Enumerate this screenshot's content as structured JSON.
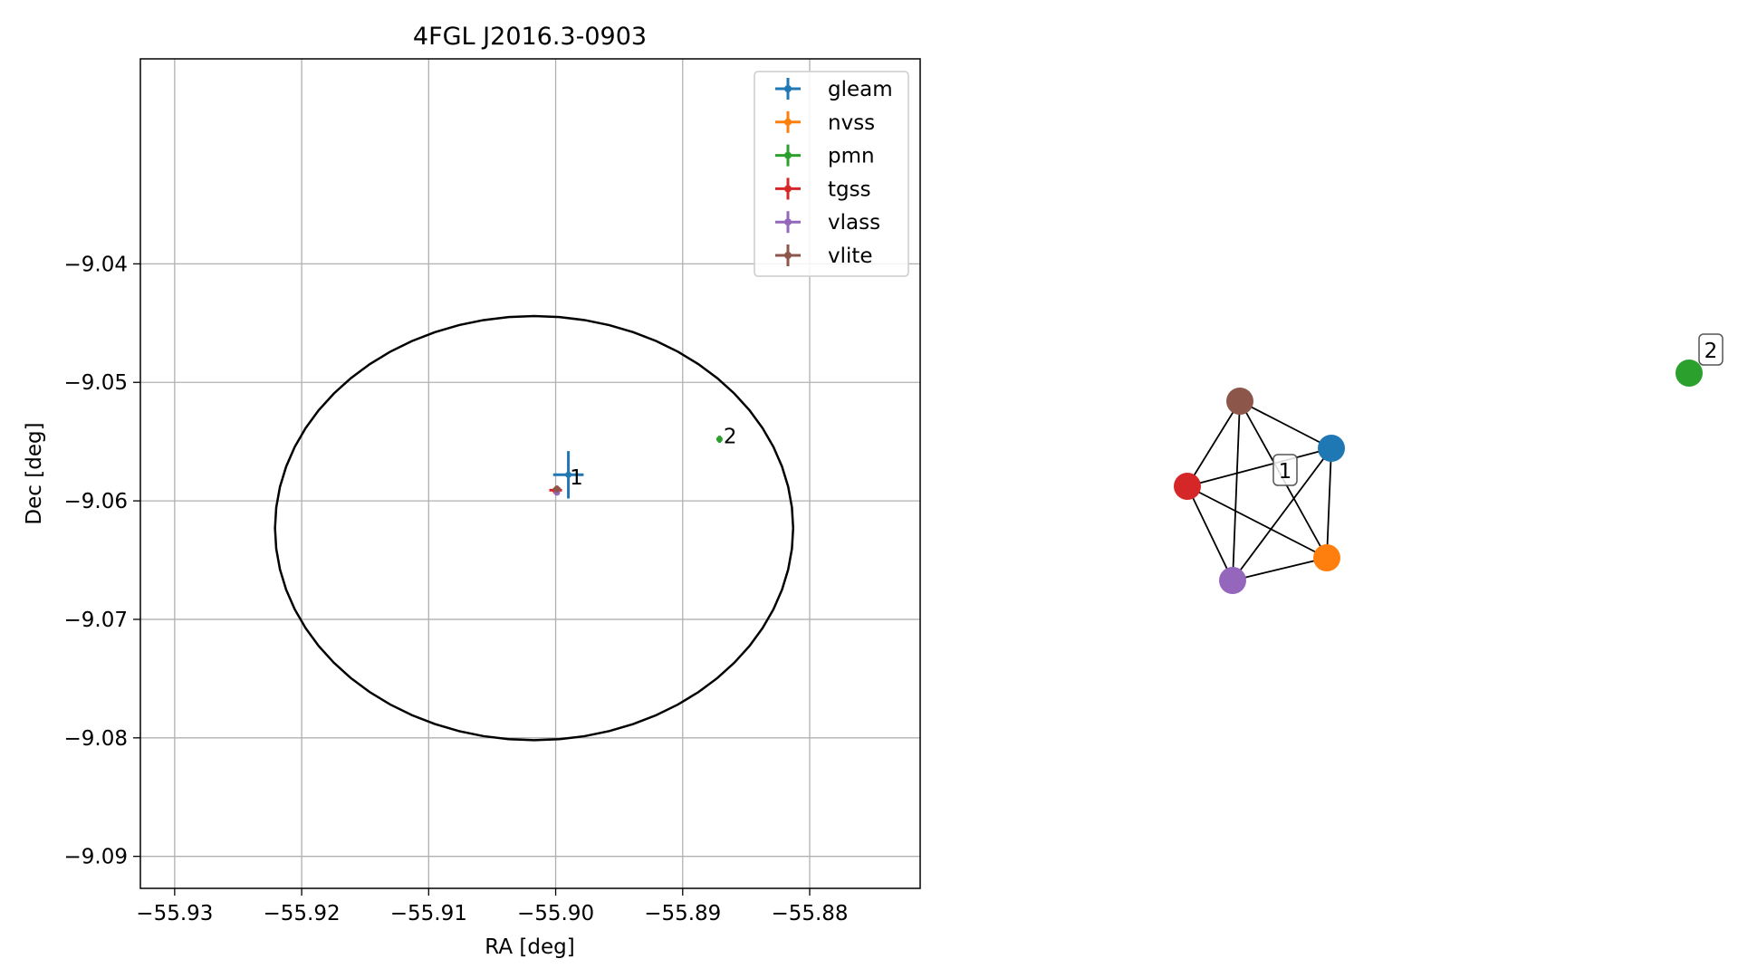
{
  "chart_data": [
    {
      "type": "scatter",
      "title": "4FGL J2016.3-0903",
      "xlabel": "RA [deg]",
      "ylabel": "Dec [deg]",
      "xlim": [
        -55.9327,
        -55.8713
      ],
      "ylim": [
        -9.0927,
        -9.0227
      ],
      "xticks": [
        -55.93,
        -55.92,
        -55.91,
        -55.9,
        -55.89,
        -55.88
      ],
      "xtick_labels": [
        "−55.93",
        "−55.92",
        "−55.91",
        "−55.90",
        "−55.89",
        "−55.88"
      ],
      "yticks": [
        -9.04,
        -9.05,
        -9.06,
        -9.07,
        -9.08,
        -9.09
      ],
      "ytick_labels": [
        "−9.04",
        "−9.05",
        "−9.06",
        "−9.07",
        "−9.08",
        "−9.09"
      ],
      "grid": true,
      "legend_position": "top-right",
      "error_ellipse": {
        "center": [
          -55.9017,
          -9.0623
        ],
        "radius_ra": 0.0204,
        "radius_dec": 0.0179,
        "color": "#000000"
      },
      "series": [
        {
          "name": "gleam",
          "color": "#1f77b4",
          "x": -55.899,
          "y": -9.0578,
          "xerr": 0.0012,
          "yerr": 0.002
        },
        {
          "name": "nvss",
          "color": "#ff7f0e",
          "x": -55.9,
          "y": -9.0592,
          "xerr": 0.0002,
          "yerr": 0.0002
        },
        {
          "name": "pmn",
          "color": "#2ca02c",
          "x": -55.8871,
          "y": -9.0548,
          "xerr": 0.0002,
          "yerr": 0.0003
        },
        {
          "name": "tgss",
          "color": "#d62728",
          "x": -55.9,
          "y": -9.0591,
          "xerr": 0.0005,
          "yerr": 0.0003
        },
        {
          "name": "vlass",
          "color": "#9467bd",
          "x": -55.8999,
          "y": -9.0593,
          "xerr": 0.0001,
          "yerr": 0.0001
        },
        {
          "name": "vlite",
          "color": "#8c564b",
          "x": -55.8999,
          "y": -9.059,
          "xerr": 0.0003,
          "yerr": 0.0003
        }
      ],
      "annotations": [
        {
          "text": "1",
          "x": -55.8991,
          "y": -9.0581
        },
        {
          "text": "2",
          "x": -55.887,
          "y": -9.0546
        }
      ]
    },
    {
      "type": "network",
      "nodes": [
        {
          "id": "gleam",
          "color": "#1f77b4"
        },
        {
          "id": "nvss",
          "color": "#ff7f0e"
        },
        {
          "id": "pmn",
          "color": "#2ca02c"
        },
        {
          "id": "tgss",
          "color": "#d62728"
        },
        {
          "id": "vlass",
          "color": "#9467bd"
        },
        {
          "id": "vlite",
          "color": "#8c564b"
        }
      ],
      "edges": [
        [
          "vlite",
          "gleam"
        ],
        [
          "vlite",
          "tgss"
        ],
        [
          "vlite",
          "vlass"
        ],
        [
          "vlite",
          "nvss"
        ],
        [
          "gleam",
          "tgss"
        ],
        [
          "gleam",
          "vlass"
        ],
        [
          "gleam",
          "nvss"
        ],
        [
          "tgss",
          "vlass"
        ],
        [
          "tgss",
          "nvss"
        ],
        [
          "vlass",
          "nvss"
        ]
      ],
      "cluster_labels": [
        "1",
        "2"
      ]
    }
  ]
}
